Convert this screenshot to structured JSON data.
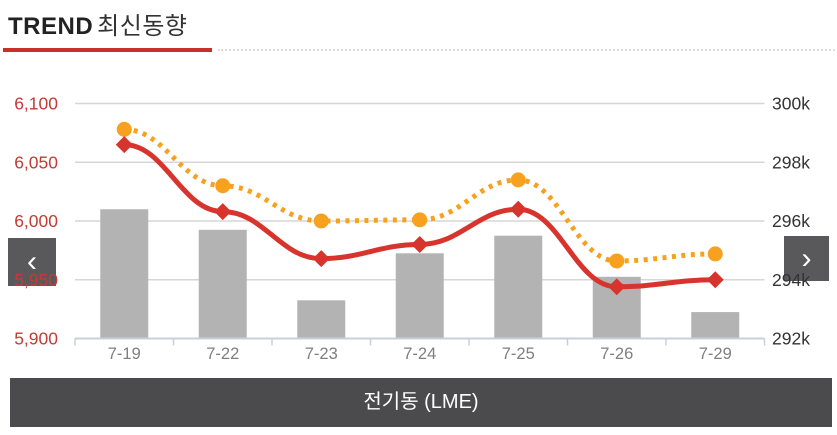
{
  "header": {
    "title_main": "TREND",
    "title_sub": "최신동향"
  },
  "nav": {
    "prev_icon": "‹",
    "next_icon": "›"
  },
  "footer": {
    "label": "전기동 (LME)"
  },
  "colors": {
    "accent_red": "#c9302c",
    "price_line_red": "#d7342e",
    "secondary_line_orange": "#f7a11f",
    "bar_gray": "#b3b3b3",
    "left_axis_text": "#c23b36",
    "right_axis_text": "#333333",
    "x_axis_text": "#7f7f7f",
    "gridline": "#d6d6d6",
    "axis_line": "#c5d0dc",
    "footer_bg": "#4b4b4d",
    "nav_button_bg": "#59595b"
  },
  "chart_data": {
    "type": "combo",
    "title": "전기동 (LME) 최신동향",
    "categories": [
      "7-19",
      "7-22",
      "7-23",
      "7-24",
      "7-25",
      "7-26",
      "7-29"
    ],
    "series": [
      {
        "name": "inventory-bars",
        "type": "bar",
        "axis": "right",
        "color": "#b3b3b3",
        "values": [
          296.4,
          295.7,
          293.3,
          294.9,
          295.5,
          294.1,
          292.9
        ]
      },
      {
        "name": "secondary-price-dotted-line",
        "type": "line",
        "axis": "left",
        "color": "#f7a11f",
        "style": "dotted",
        "marker": "circle",
        "values": [
          6078,
          6030,
          6000,
          6001,
          6035,
          5966,
          5972
        ]
      },
      {
        "name": "price-line",
        "type": "line",
        "axis": "left",
        "color": "#d7342e",
        "style": "solid",
        "marker": "diamond",
        "values": [
          6065,
          6008,
          5968,
          5980,
          6010,
          5944,
          5950
        ]
      }
    ],
    "left_axis": {
      "min": 5900,
      "max": 6100,
      "color": "#c23b36",
      "ticks": [
        {
          "label": "6,100",
          "value": 6100
        },
        {
          "label": "6,050",
          "value": 6050
        },
        {
          "label": "6,000",
          "value": 6000
        },
        {
          "label": "5,950",
          "value": 5950
        },
        {
          "label": "5,900",
          "value": 5900
        }
      ]
    },
    "right_axis": {
      "min": 292,
      "max": 300,
      "color": "#333333",
      "ticks": [
        {
          "label": "300k",
          "value": 300
        },
        {
          "label": "298k",
          "value": 298
        },
        {
          "label": "296k",
          "value": 296
        },
        {
          "label": "294k",
          "value": 294
        },
        {
          "label": "292k",
          "value": 292
        }
      ]
    },
    "grid": true,
    "legend": "none"
  }
}
